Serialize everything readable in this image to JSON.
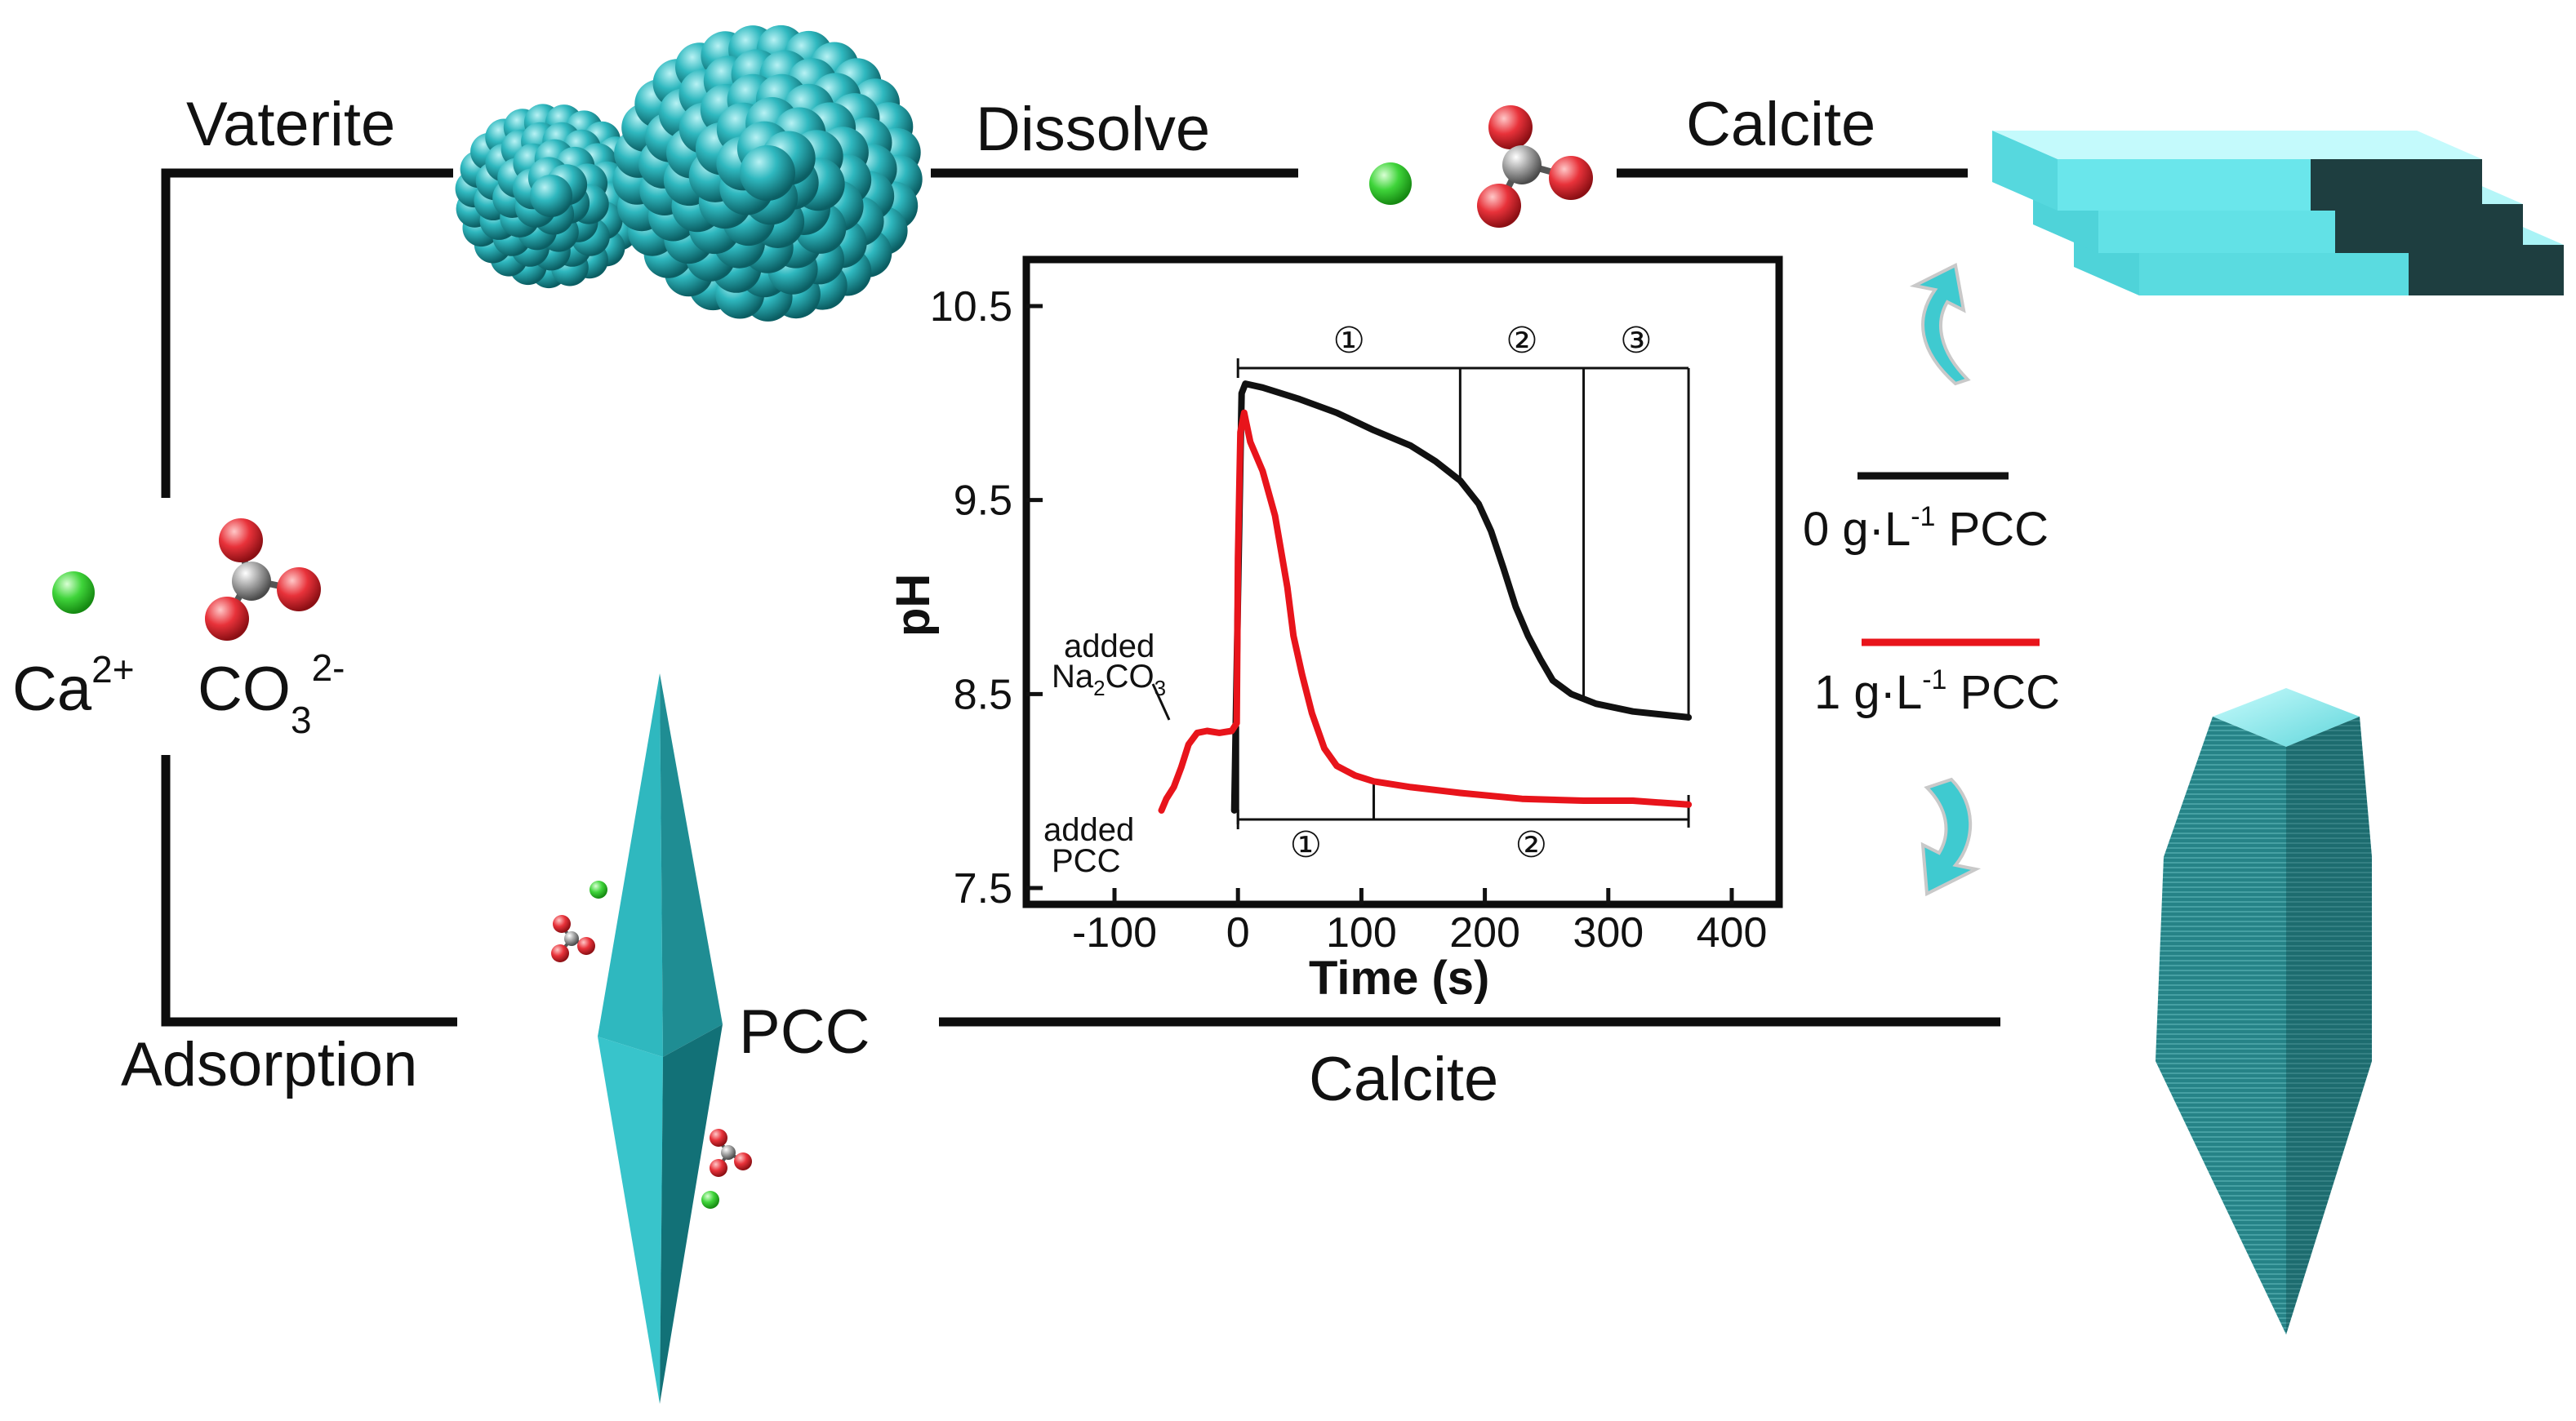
{
  "labels": {
    "vaterite": "Vaterite",
    "dissolve": "Dissolve",
    "calcite_top": "Calcite",
    "calcite_bottom": "Calcite",
    "adsorption": "Adsorption",
    "pcc": "PCC"
  },
  "ions": {
    "ca_base": "Ca",
    "ca_charge": "2+",
    "co3_base": "CO",
    "co3_sub": "3",
    "co3_charge": "2-"
  },
  "legend": [
    {
      "color": "#111111",
      "prefix": "0 g·L",
      "exp": "-1",
      "suffix": " PCC"
    },
    {
      "color": "#e8141b",
      "prefix": "1 g·L",
      "exp": "-1",
      "suffix": " PCC"
    }
  ],
  "colors": {
    "crystal": "#2fb8bf",
    "calcium": "#3fd43a",
    "oxygen": "#e8323a",
    "carbon": "#9a9a9a",
    "arrow": "#3fcad0"
  },
  "chart_data": {
    "type": "line",
    "xlabel": "Time (s)",
    "ylabel": "pH",
    "xlim": [
      -100,
      400
    ],
    "ylim": [
      7.5,
      10.7
    ],
    "xticks": [
      "-100",
      "0",
      "100",
      "200",
      "300",
      "400"
    ],
    "yticks": [
      "7.5",
      "8.5",
      "9.5",
      "10.5"
    ],
    "annotations": {
      "added_na2co3_line1": "added",
      "added_na2co3_na": "Na",
      "added_na2co3_sub": "2",
      "added_na2co3_co": "CO",
      "added_na2co3_sub2": "3",
      "added_pcc_line1": "added",
      "added_pcc_line2": "PCC"
    },
    "phases_top": [
      {
        "label": "①",
        "from": 0,
        "to": 180
      },
      {
        "label": "②",
        "from": 180,
        "to": 280
      },
      {
        "label": "③",
        "from": 280,
        "to": 365
      }
    ],
    "phases_bottom": [
      {
        "label": "①",
        "from": 0,
        "to": 110
      },
      {
        "label": "②",
        "from": 110,
        "to": 365
      }
    ],
    "series": [
      {
        "name": "0 g·L⁻¹ PCC",
        "color": "#111111",
        "points": [
          [
            -3,
            7.9
          ],
          [
            0,
            9.0
          ],
          [
            3,
            10.05
          ],
          [
            6,
            10.1
          ],
          [
            20,
            10.08
          ],
          [
            50,
            10.02
          ],
          [
            80,
            9.95
          ],
          [
            110,
            9.86
          ],
          [
            140,
            9.78
          ],
          [
            160,
            9.7
          ],
          [
            180,
            9.6
          ],
          [
            195,
            9.48
          ],
          [
            205,
            9.34
          ],
          [
            215,
            9.15
          ],
          [
            225,
            8.95
          ],
          [
            235,
            8.8
          ],
          [
            245,
            8.68
          ],
          [
            255,
            8.57
          ],
          [
            270,
            8.5
          ],
          [
            290,
            8.45
          ],
          [
            320,
            8.41
          ],
          [
            350,
            8.39
          ],
          [
            365,
            8.38
          ]
        ]
      },
      {
        "name": "1 g·L⁻¹ PCC",
        "color": "#e8141b",
        "points": [
          [
            -62,
            7.9
          ],
          [
            -58,
            7.96
          ],
          [
            -52,
            8.02
          ],
          [
            -46,
            8.12
          ],
          [
            -40,
            8.24
          ],
          [
            -33,
            8.3
          ],
          [
            -25,
            8.31
          ],
          [
            -15,
            8.3
          ],
          [
            -5,
            8.31
          ],
          [
            -1,
            8.35
          ],
          [
            0,
            9.2
          ],
          [
            2,
            9.85
          ],
          [
            5,
            9.95
          ],
          [
            10,
            9.8
          ],
          [
            20,
            9.65
          ],
          [
            30,
            9.42
          ],
          [
            40,
            9.05
          ],
          [
            45,
            8.8
          ],
          [
            52,
            8.6
          ],
          [
            60,
            8.4
          ],
          [
            70,
            8.22
          ],
          [
            80,
            8.13
          ],
          [
            95,
            8.08
          ],
          [
            110,
            8.05
          ],
          [
            140,
            8.02
          ],
          [
            180,
            7.99
          ],
          [
            230,
            7.96
          ],
          [
            280,
            7.95
          ],
          [
            320,
            7.95
          ],
          [
            365,
            7.93
          ]
        ]
      }
    ]
  }
}
